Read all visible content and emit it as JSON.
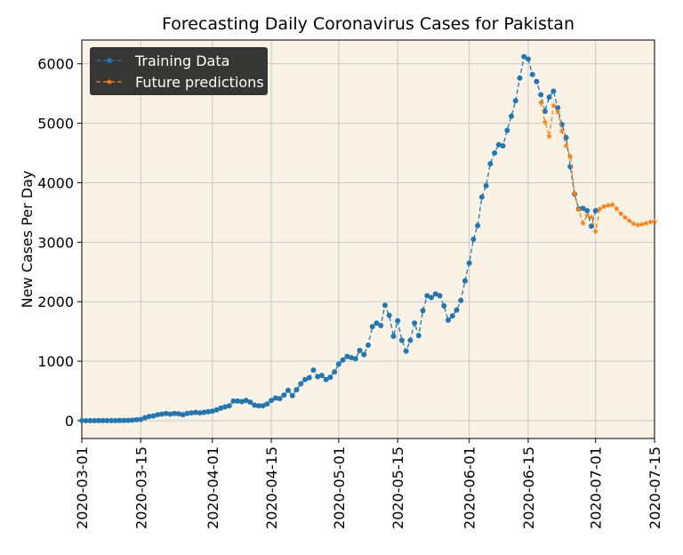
{
  "chart_data": {
    "type": "line",
    "title": "Forecasting Daily Coronavirus Cases for Pakistan",
    "ylabel": "New Cases Per Day",
    "x": [
      "2020-03-01",
      "2020-03-02",
      "2020-03-03",
      "2020-03-04",
      "2020-03-05",
      "2020-03-06",
      "2020-03-07",
      "2020-03-08",
      "2020-03-09",
      "2020-03-10",
      "2020-03-11",
      "2020-03-12",
      "2020-03-13",
      "2020-03-14",
      "2020-03-15",
      "2020-03-16",
      "2020-03-17",
      "2020-03-18",
      "2020-03-19",
      "2020-03-20",
      "2020-03-21",
      "2020-03-22",
      "2020-03-23",
      "2020-03-24",
      "2020-03-25",
      "2020-03-26",
      "2020-03-27",
      "2020-03-28",
      "2020-03-29",
      "2020-03-30",
      "2020-03-31",
      "2020-04-01",
      "2020-04-02",
      "2020-04-03",
      "2020-04-04",
      "2020-04-05",
      "2020-04-06",
      "2020-04-07",
      "2020-04-08",
      "2020-04-09",
      "2020-04-10",
      "2020-04-11",
      "2020-04-12",
      "2020-04-13",
      "2020-04-14",
      "2020-04-15",
      "2020-04-16",
      "2020-04-17",
      "2020-04-18",
      "2020-04-19",
      "2020-04-20",
      "2020-04-21",
      "2020-04-22",
      "2020-04-23",
      "2020-04-24",
      "2020-04-25",
      "2020-04-26",
      "2020-04-27",
      "2020-04-28",
      "2020-04-29",
      "2020-04-30",
      "2020-05-01",
      "2020-05-02",
      "2020-05-03",
      "2020-05-04",
      "2020-05-05",
      "2020-05-06",
      "2020-05-07",
      "2020-05-08",
      "2020-05-09",
      "2020-05-10",
      "2020-05-11",
      "2020-05-12",
      "2020-05-13",
      "2020-05-14",
      "2020-05-15",
      "2020-05-16",
      "2020-05-17",
      "2020-05-18",
      "2020-05-19",
      "2020-05-20",
      "2020-05-21",
      "2020-05-22",
      "2020-05-23",
      "2020-05-24",
      "2020-05-25",
      "2020-05-26",
      "2020-05-27",
      "2020-05-28",
      "2020-05-29",
      "2020-05-30",
      "2020-05-31",
      "2020-06-01",
      "2020-06-02",
      "2020-06-03",
      "2020-06-04",
      "2020-06-05",
      "2020-06-06",
      "2020-06-07",
      "2020-06-08",
      "2020-06-09",
      "2020-06-10",
      "2020-06-11",
      "2020-06-12",
      "2020-06-13",
      "2020-06-14",
      "2020-06-15",
      "2020-06-16",
      "2020-06-17",
      "2020-06-18",
      "2020-06-19",
      "2020-06-20",
      "2020-06-21",
      "2020-06-22",
      "2020-06-23",
      "2020-06-24",
      "2020-06-25",
      "2020-06-26",
      "2020-06-27",
      "2020-06-28",
      "2020-06-29",
      "2020-06-30",
      "2020-07-01",
      "2020-07-02",
      "2020-07-03",
      "2020-07-04",
      "2020-07-05",
      "2020-07-06",
      "2020-07-07",
      "2020-07-08",
      "2020-07-09",
      "2020-07-10",
      "2020-07-11",
      "2020-07-12",
      "2020-07-13",
      "2020-07-14",
      "2020-07-15"
    ],
    "series": [
      {
        "name": "Training Data",
        "color": "#1f77b4",
        "marker": "circle",
        "values": [
          0,
          0,
          0,
          0,
          1,
          1,
          1,
          1,
          1,
          2,
          2,
          5,
          8,
          15,
          20,
          50,
          70,
          80,
          100,
          110,
          120,
          110,
          120,
          115,
          100,
          120,
          130,
          140,
          130,
          140,
          150,
          160,
          180,
          210,
          230,
          250,
          330,
          330,
          320,
          340,
          310,
          260,
          250,
          250,
          280,
          340,
          380,
          370,
          430,
          510,
          420,
          520,
          620,
          690,
          720,
          850,
          740,
          760,
          690,
          730,
          820,
          950,
          1020,
          1080,
          1060,
          1040,
          1180,
          1110,
          1270,
          1580,
          1640,
          1600,
          1940,
          1770,
          1420,
          1680,
          1350,
          1170,
          1350,
          1640,
          1430,
          1850,
          2100,
          2070,
          2130,
          2100,
          1930,
          1690,
          1760,
          1860,
          2020,
          2350,
          2650,
          3050,
          3280,
          3760,
          3950,
          4320,
          4500,
          4640,
          4620,
          4880,
          5120,
          5380,
          5760,
          6120,
          6080,
          5820,
          5700,
          5480,
          5200,
          5440,
          5540,
          5260,
          4980,
          4760,
          4270,
          3810,
          3560,
          3570,
          3530,
          3270,
          3530,
          null,
          null,
          null,
          null,
          null,
          null,
          null,
          null,
          null,
          null,
          null,
          null,
          null,
          null
        ]
      },
      {
        "name": "Future predictions",
        "color": "#ff7f0e",
        "marker": "star",
        "values": [
          null,
          null,
          null,
          null,
          null,
          null,
          null,
          null,
          null,
          null,
          null,
          null,
          null,
          null,
          null,
          null,
          null,
          null,
          null,
          null,
          null,
          null,
          null,
          null,
          null,
          null,
          null,
          null,
          null,
          null,
          null,
          null,
          null,
          null,
          null,
          null,
          null,
          null,
          null,
          null,
          null,
          null,
          null,
          null,
          null,
          null,
          null,
          null,
          null,
          null,
          null,
          null,
          null,
          null,
          null,
          null,
          null,
          null,
          null,
          null,
          null,
          null,
          null,
          null,
          null,
          null,
          null,
          null,
          null,
          null,
          null,
          null,
          null,
          null,
          null,
          null,
          null,
          null,
          null,
          null,
          null,
          null,
          null,
          null,
          null,
          null,
          null,
          null,
          null,
          null,
          null,
          null,
          null,
          null,
          null,
          null,
          null,
          null,
          null,
          null,
          null,
          null,
          null,
          null,
          null,
          null,
          null,
          null,
          null,
          5350,
          5020,
          4780,
          5300,
          5190,
          4870,
          4620,
          4440,
          3820,
          3550,
          3320,
          3450,
          3420,
          3180,
          3560,
          3600,
          3620,
          3630,
          3560,
          3480,
          3420,
          3360,
          3310,
          3290,
          3300,
          3320,
          3340,
          3350
        ]
      }
    ],
    "xlim": [
      "2020-03-01",
      "2020-07-15"
    ],
    "xticks": [
      "2020-03-01",
      "2020-03-15",
      "2020-04-01",
      "2020-04-15",
      "2020-05-01",
      "2020-05-15",
      "2020-06-01",
      "2020-06-15",
      "2020-07-01",
      "2020-07-15"
    ],
    "ylim": [
      -300,
      6400
    ],
    "yticks": [
      0,
      1000,
      2000,
      3000,
      4000,
      5000,
      6000
    ],
    "grid": true,
    "legend": "upper left"
  }
}
